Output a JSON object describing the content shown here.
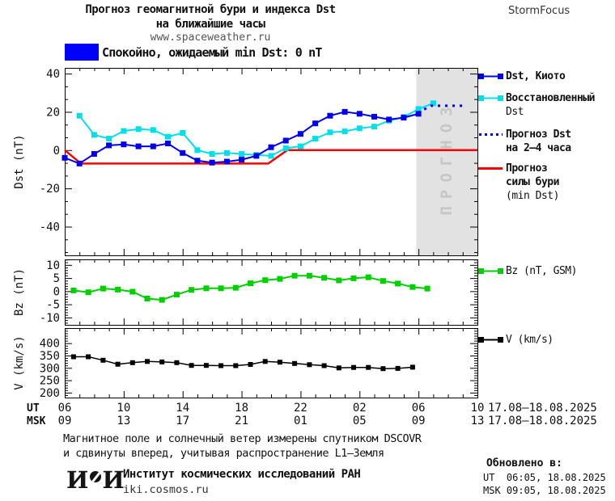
{
  "header": {
    "title_line1": "Прогноз геомагнитной бури и индекса Dst",
    "title_line2": "на ближайшие часы",
    "title_line3": "www.spaceweather.ru",
    "brand": "StormFocus"
  },
  "status": {
    "label": "Спокойно, ожидаемый min Dst: 0 nT",
    "swatch_color": "#0000fe"
  },
  "chart_data": {
    "type": "line",
    "title": "Прогноз геомагнитной бури и индекса Dst на ближайшие часы",
    "x_hours_range": [
      6,
      34
    ],
    "xaxis": {
      "row1_header": "UT",
      "row2_header": "MSK",
      "label_hours": [
        6,
        10,
        14,
        18,
        22,
        26,
        30,
        34
      ],
      "row1_labels": [
        "06",
        "10",
        "14",
        "18",
        "22",
        "02",
        "06",
        "10"
      ],
      "row2_labels": [
        "09",
        "13",
        "17",
        "21",
        "01",
        "05",
        "09",
        "13"
      ],
      "row1_date": "17.08–18.08.2025",
      "row2_date": "17.08–18.08.2025"
    },
    "forecast_band": {
      "from_hour": 29.85,
      "to_hour": 34,
      "label": "ПРОГНОЗ",
      "fill": "#e2e2e2",
      "text_color": "#c6c6c6"
    },
    "panels": [
      {
        "id": "dst",
        "ylabel": "Dst (nT)",
        "ymin": -55,
        "ymax": 43,
        "yticks": [
          40,
          20,
          0,
          -20,
          -40
        ],
        "minor_step": 6.6667
      },
      {
        "id": "bz",
        "ylabel": "Bz (nT)",
        "ymin": -12.8,
        "ymax": 12.1,
        "yticks": [
          10,
          5,
          0,
          -5,
          -10
        ],
        "minor_step": 1
      },
      {
        "id": "v",
        "ylabel": "V (km/s)",
        "ymin": 180,
        "ymax": 461,
        "yticks": [
          400,
          350,
          300,
          250,
          200
        ],
        "minor_step": 10
      }
    ],
    "series": [
      {
        "id": "storm_forecast",
        "panel": "dst",
        "name": "Прогноз силы бури (min Dst)",
        "color": "#fe0000",
        "width": 2.5,
        "z": 1,
        "points": [
          [
            6,
            0
          ],
          [
            7.1,
            -7
          ],
          [
            19.8,
            -7
          ],
          [
            21.1,
            0
          ],
          [
            34,
            0
          ]
        ]
      },
      {
        "id": "dst_restored",
        "panel": "dst",
        "name": "Восстановленный Dst",
        "color": "#00e0ea",
        "marker": "square",
        "marker_size": 7,
        "width": 2,
        "z": 2,
        "start_hour": 7,
        "step": 1,
        "values": [
          18,
          8,
          6,
          10,
          11,
          10.5,
          7,
          9,
          0,
          -2,
          -1.5,
          -2,
          -2.5,
          -3,
          1,
          2,
          6,
          9.3,
          9.8,
          11.4,
          12.3,
          15.4,
          17.3,
          21.5,
          24.5
        ]
      },
      {
        "id": "dst_kyoto",
        "panel": "dst",
        "name": "Dst, Киото",
        "color": "#0000ee",
        "marker": "square",
        "marker_size": 7,
        "width": 2,
        "z": 3,
        "start_hour": 6,
        "step": 1,
        "values": [
          -4,
          -7,
          -2,
          2.5,
          3,
          2,
          2,
          3.5,
          -1.5,
          -5.5,
          -6.5,
          -6,
          -5,
          -3,
          1.5,
          5,
          8.5,
          14,
          18,
          20,
          19,
          17.5,
          16,
          17,
          19
        ]
      },
      {
        "id": "dst_forecast",
        "panel": "dst",
        "name": "Прогноз Dst на 2–4 часа",
        "color": "#0000ee",
        "style": "dotted",
        "width": 3,
        "z": 4,
        "points": [
          [
            29.95,
            19.5
          ],
          [
            30.85,
            23.2
          ],
          [
            33.2,
            23.2
          ]
        ]
      },
      {
        "id": "bz_series",
        "panel": "bz",
        "name": "Bz (nT, GSM)",
        "color": "#00d000",
        "marker": "square",
        "marker_size": 7,
        "width": 2,
        "z": 1,
        "start_hour": 6.6,
        "step": 1,
        "values": [
          0.3,
          -0.4,
          1,
          0.6,
          -0.2,
          -2.8,
          -3.3,
          -1.3,
          0.5,
          1.1,
          1.1,
          1.3,
          3,
          4.2,
          4.7,
          5.9,
          5.9,
          5.1,
          4.1,
          4.9,
          5.3,
          3.9,
          2.9,
          1.6,
          1
        ]
      },
      {
        "id": "v_series",
        "panel": "v",
        "name": "V (km/s)",
        "color": "#000000",
        "marker": "square",
        "marker_size": 6,
        "width": 1.5,
        "z": 1,
        "start_hour": 6.6,
        "step": 1,
        "values": [
          345,
          345,
          331,
          315,
          321,
          326,
          324,
          321,
          310,
          310,
          309,
          309,
          314,
          326,
          323,
          318,
          313,
          309,
          300,
          302,
          302,
          297,
          298,
          303
        ]
      }
    ]
  },
  "legend": {
    "items": [
      {
        "id": "dst_kyoto",
        "marker": "square-line",
        "color": "#0000ee",
        "lines": [
          "Dst, Киото"
        ]
      },
      {
        "id": "dst_restored",
        "marker": "square-line",
        "color": "#00e0ea",
        "lines": [
          "Восстановленный",
          "Dst"
        ]
      },
      {
        "id": "dst_forecast",
        "marker": "dotted-line",
        "color": "#0000ee",
        "lines": [
          "Прогноз Dst",
          "на 2–4 часа"
        ]
      },
      {
        "id": "storm_forecast",
        "marker": "line",
        "color": "#fe0000",
        "lines": [
          "Прогноз",
          "силы бури",
          "(min Dst)"
        ]
      },
      {
        "id": "bz_series",
        "marker": "square-line",
        "color": "#00d000",
        "lines": [
          "Bz (nT, GSM)"
        ]
      },
      {
        "id": "v_series",
        "marker": "square-line",
        "color": "#000000",
        "lines": [
          "V (km/s)"
        ]
      }
    ]
  },
  "footer": {
    "line1": "Магнитное поле и солнечный ветер измерены спутником DSCOVR",
    "line2": "и сдвинуты вперед, учитывая распространение L1–Земля",
    "logo_left": "И",
    "logo_right": "И",
    "institute": "Институт космических исследований РАН",
    "site": "iki.cosmos.ru"
  },
  "updated": {
    "heading": "Обновлено в:",
    "ut_line": "UT  06:05, 18.08.2025",
    "msk_line": "MSK 09:05, 18.08.2025"
  }
}
